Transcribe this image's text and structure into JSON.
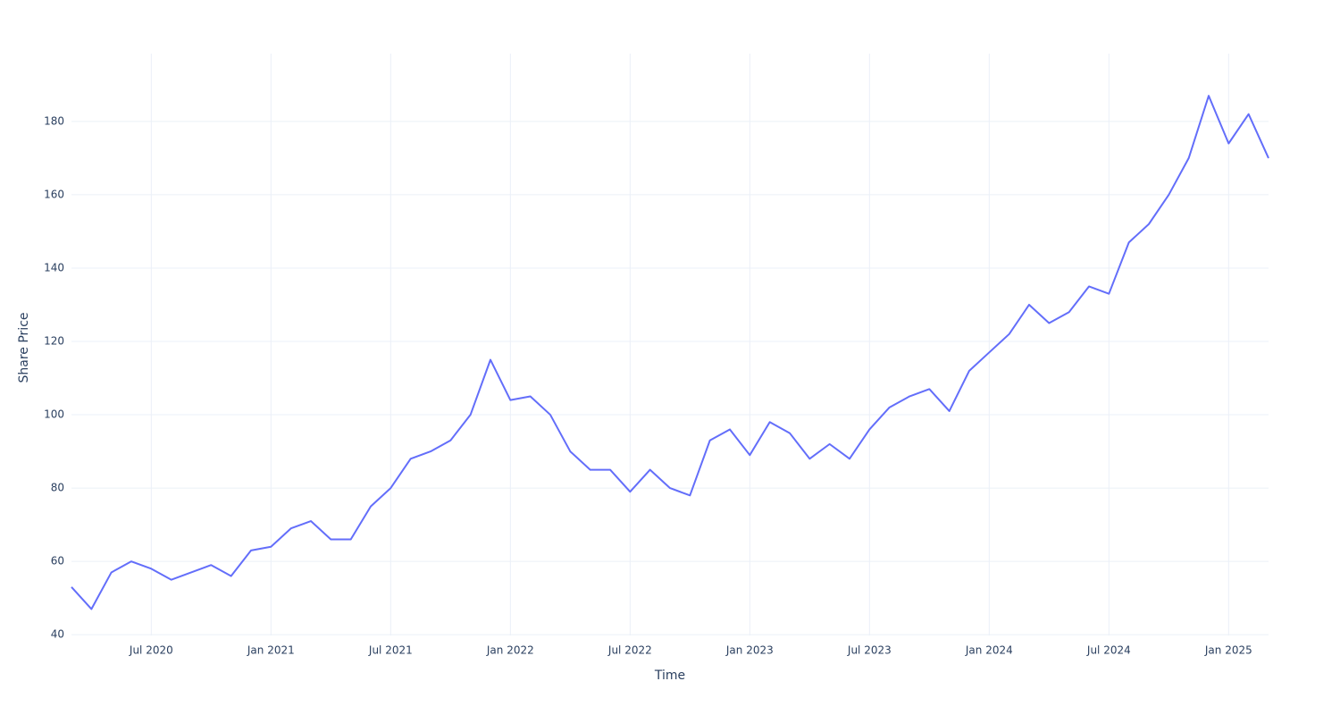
{
  "chart_data": {
    "type": "line",
    "x_label": "Time",
    "y_label": "Share Price",
    "x": [
      "2020-03",
      "2020-04",
      "2020-05",
      "2020-06",
      "2020-07",
      "2020-08",
      "2020-09",
      "2020-10",
      "2020-11",
      "2020-12",
      "2021-01",
      "2021-02",
      "2021-03",
      "2021-04",
      "2021-05",
      "2021-06",
      "2021-07",
      "2021-08",
      "2021-09",
      "2021-10",
      "2021-11",
      "2021-12",
      "2022-01",
      "2022-02",
      "2022-03",
      "2022-04",
      "2022-05",
      "2022-06",
      "2022-07",
      "2022-08",
      "2022-09",
      "2022-10",
      "2022-11",
      "2022-12",
      "2023-01",
      "2023-02",
      "2023-03",
      "2023-04",
      "2023-05",
      "2023-06",
      "2023-07",
      "2023-08",
      "2023-09",
      "2023-10",
      "2023-11",
      "2023-12",
      "2024-01",
      "2024-02",
      "2024-03",
      "2024-04",
      "2024-05",
      "2024-06",
      "2024-07",
      "2024-08",
      "2024-09",
      "2024-10",
      "2024-11",
      "2024-12",
      "2025-01",
      "2025-02",
      "2025-03"
    ],
    "values": [
      53,
      47,
      57,
      60,
      58,
      55,
      57,
      59,
      56,
      63,
      64,
      69,
      71,
      66,
      66,
      75,
      80,
      88,
      90,
      93,
      100,
      115,
      104,
      105,
      100,
      90,
      85,
      85,
      79,
      85,
      80,
      78,
      93,
      96,
      89,
      98,
      95,
      88,
      92,
      88,
      96,
      102,
      105,
      107,
      101,
      112,
      117,
      122,
      130,
      125,
      128,
      135,
      133,
      147,
      152,
      160,
      170,
      187,
      174,
      182,
      170
    ],
    "color": "#636efa",
    "xlim": [
      "2020-03",
      "2025-03"
    ],
    "xticks": [
      {
        "value": "2020-07",
        "label": "Jul 2020"
      },
      {
        "value": "2021-01",
        "label": "Jan 2021"
      },
      {
        "value": "2021-07",
        "label": "Jul 2021"
      },
      {
        "value": "2022-01",
        "label": "Jan 2022"
      },
      {
        "value": "2022-07",
        "label": "Jul 2022"
      },
      {
        "value": "2023-01",
        "label": "Jan 2023"
      },
      {
        "value": "2023-07",
        "label": "Jul 2023"
      },
      {
        "value": "2024-01",
        "label": "Jan 2024"
      },
      {
        "value": "2024-07",
        "label": "Jul 2024"
      },
      {
        "value": "2025-01",
        "label": "Jan 2025"
      }
    ],
    "ylim": [
      39.8,
      198.5
    ],
    "yticks": [
      40,
      60,
      80,
      100,
      120,
      140,
      160,
      180
    ],
    "grid": true
  }
}
